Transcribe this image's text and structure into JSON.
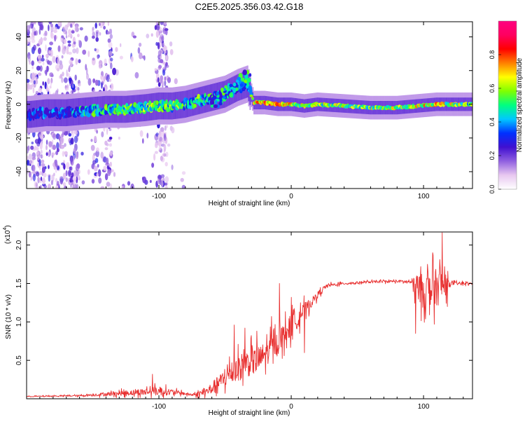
{
  "figure": {
    "title": "C2E5.2025.356.03.42.G18"
  },
  "chart_data": [
    {
      "type": "heatmap",
      "name": "spectrogram",
      "xlabel": "Height of straight line (km)",
      "ylabel": "Frequency (Hz)",
      "xlim": [
        -200,
        137
      ],
      "ylim": [
        -50,
        49
      ],
      "xticks": [
        -100,
        0,
        100
      ],
      "xtick_labels": [
        "-100",
        "0",
        "100"
      ],
      "yticks": [
        -40,
        -20,
        0,
        20,
        40
      ],
      "ytick_labels": [
        "-40",
        "-20",
        "0",
        "20",
        "40"
      ],
      "colorbar": {
        "label": "Normalized spectral amplitude",
        "range": [
          0,
          1
        ],
        "ticks": [
          0,
          0.2,
          0.4,
          0.6,
          0.8
        ],
        "tick_labels": [
          "0.0",
          "0.2",
          "0.4",
          "0.6",
          "0.8"
        ],
        "colors": [
          "#ffffff",
          "#e8c8f0",
          "#9060e0",
          "#4010d0",
          "#0030ff",
          "#00c8ff",
          "#00ff80",
          "#80ff00",
          "#ffff00",
          "#ff8000",
          "#ff0000",
          "#ff0060",
          "#ff0080"
        ]
      },
      "ridge": {
        "x": [
          -197,
          -185,
          -170,
          -155,
          -140,
          -125,
          -110,
          -100,
          -90,
          -80,
          -70,
          -60,
          -50,
          -40,
          -33,
          -28,
          -20,
          -10,
          0,
          10,
          20,
          40,
          60,
          80,
          95,
          110,
          125,
          137
        ],
        "freq": [
          -6,
          -5,
          -5,
          -4,
          -3,
          -3,
          -2,
          -1,
          -1,
          0,
          2,
          4,
          6,
          10,
          12,
          1,
          1,
          0,
          0,
          -1,
          0,
          -1,
          -2,
          -2,
          -1,
          0,
          0,
          0
        ],
        "amplitude": [
          0.25,
          0.25,
          0.3,
          0.4,
          0.45,
          0.45,
          0.5,
          0.5,
          0.5,
          0.45,
          0.45,
          0.4,
          0.35,
          0.3,
          0.35,
          0.6,
          0.75,
          0.7,
          0.65,
          0.55,
          0.55,
          0.55,
          0.55,
          0.55,
          0.6,
          0.65,
          0.55,
          0.5
        ]
      },
      "noise_region_x": [
        -200,
        -80
      ]
    },
    {
      "type": "line",
      "name": "snr",
      "xlabel": "Height of straight line (km)",
      "ylabel": "SNR (10 * v/v)",
      "scale_label": "(x10",
      "scale_exponent": "4",
      "scale_close": ")",
      "xlim": [
        -200,
        137
      ],
      "ylim": [
        0,
        2.17
      ],
      "xticks": [
        -100,
        0,
        100
      ],
      "xtick_labels": [
        "-100",
        "0",
        "100"
      ],
      "yticks": [
        0.5,
        1.0,
        1.5,
        2.0
      ],
      "ytick_labels": [
        "0.5",
        "1.0",
        "1.5",
        "2.0"
      ],
      "color": "#e83030",
      "envelope": {
        "x": [
          -200,
          -160,
          -140,
          -120,
          -100,
          -85,
          -75,
          -65,
          -55,
          -45,
          -35,
          -25,
          -15,
          -5,
          0,
          5,
          10,
          15,
          20,
          25,
          30,
          40,
          60,
          80,
          90,
          95,
          100,
          105,
          110,
          115,
          120,
          137
        ],
        "mean": [
          0.03,
          0.04,
          0.06,
          0.08,
          0.1,
          0.08,
          0.05,
          0.08,
          0.2,
          0.35,
          0.45,
          0.5,
          0.65,
          0.85,
          0.95,
          1.05,
          1.15,
          1.25,
          1.35,
          1.45,
          1.48,
          1.5,
          1.52,
          1.53,
          1.52,
          1.45,
          1.4,
          1.42,
          1.45,
          1.48,
          1.5,
          1.5
        ],
        "spread": [
          0.01,
          0.02,
          0.05,
          0.07,
          0.12,
          0.05,
          0.03,
          0.1,
          0.2,
          0.3,
          0.35,
          0.35,
          0.3,
          0.3,
          0.3,
          0.25,
          0.2,
          0.12,
          0.08,
          0.05,
          0.04,
          0.03,
          0.03,
          0.03,
          0.05,
          0.35,
          0.45,
          0.4,
          0.5,
          0.4,
          0.05,
          0.03
        ]
      },
      "peaks": [
        {
          "x": -105,
          "y": 0.32
        },
        {
          "x": -43,
          "y": 0.96
        },
        {
          "x": -35,
          "y": 0.92
        },
        {
          "x": -26,
          "y": 0.88
        },
        {
          "x": -15,
          "y": 1.07
        },
        {
          "x": -9,
          "y": 1.5
        },
        {
          "x": 0,
          "y": 1.32
        },
        {
          "x": 7,
          "y": 1.25
        },
        {
          "x": 94,
          "y": 1.92
        },
        {
          "x": 98,
          "y": 1.72
        },
        {
          "x": 103,
          "y": 1.75
        },
        {
          "x": 107,
          "y": 1.9
        },
        {
          "x": 114,
          "y": 2.16
        },
        {
          "x": 116,
          "y": 1.72
        }
      ],
      "dips": [
        {
          "x": 10,
          "y": 0.6
        },
        {
          "x": 94,
          "y": 0.85
        },
        {
          "x": 108,
          "y": 0.97
        },
        {
          "x": 118,
          "y": 1.2
        }
      ]
    }
  ]
}
